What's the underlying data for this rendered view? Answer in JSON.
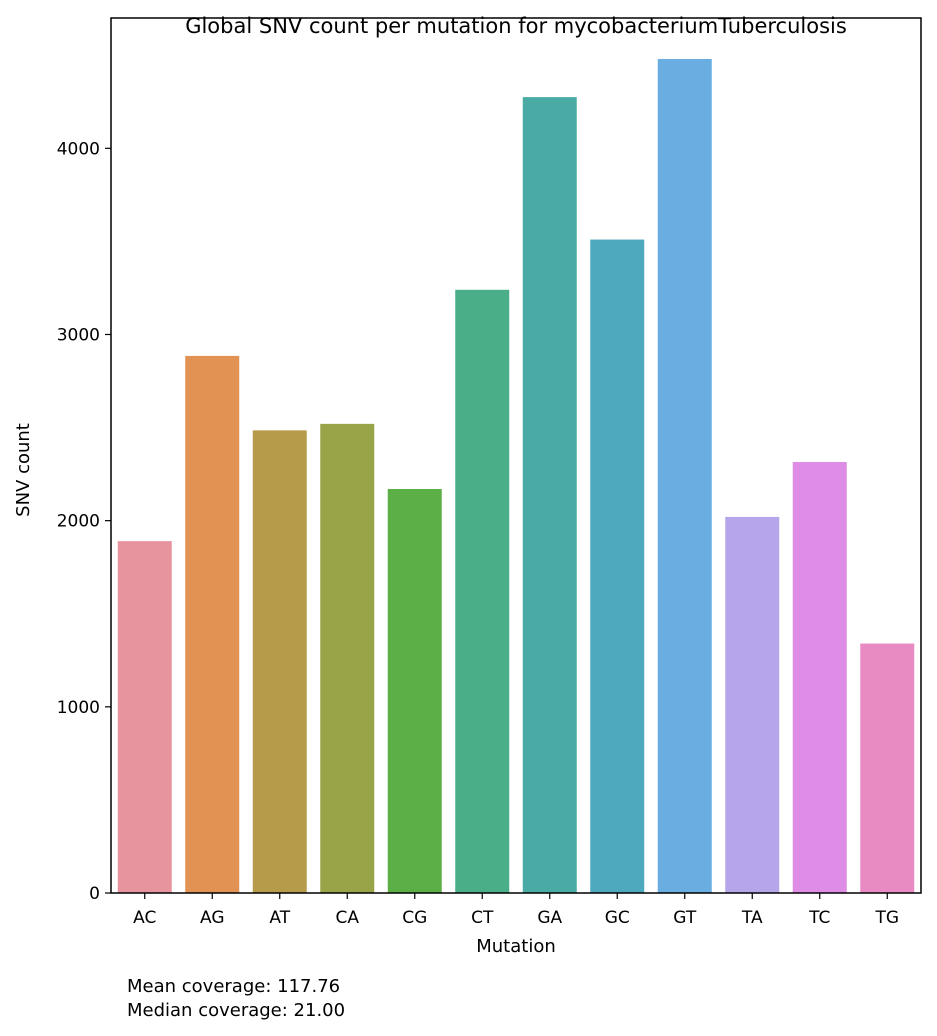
{
  "chart_data": {
    "type": "bar",
    "title": "Global SNV count per mutation for mycobacteriumTuberculosis",
    "xlabel": "Mutation",
    "ylabel": "SNV count",
    "categories": [
      "AC",
      "AG",
      "AT",
      "CA",
      "CG",
      "CT",
      "GA",
      "GC",
      "GT",
      "TA",
      "TC",
      "TG"
    ],
    "values": [
      1890,
      2885,
      2485,
      2520,
      2170,
      3240,
      4275,
      3510,
      4480,
      2020,
      2315,
      1340
    ],
    "colors": [
      "#e8949f",
      "#e29252",
      "#b59b4a",
      "#99a347",
      "#5caf46",
      "#4aae88",
      "#4aaba4",
      "#4ea9bf",
      "#6aade1",
      "#b6a5e8",
      "#de8ce6",
      "#e88bc2"
    ],
    "ylim": [
      0,
      4700
    ],
    "yticks": [
      0,
      1000,
      2000,
      3000,
      4000
    ],
    "grid": false,
    "legend": "none"
  },
  "notes": {
    "mean": "Mean coverage: 117.76",
    "median": "Median coverage: 21.00"
  }
}
